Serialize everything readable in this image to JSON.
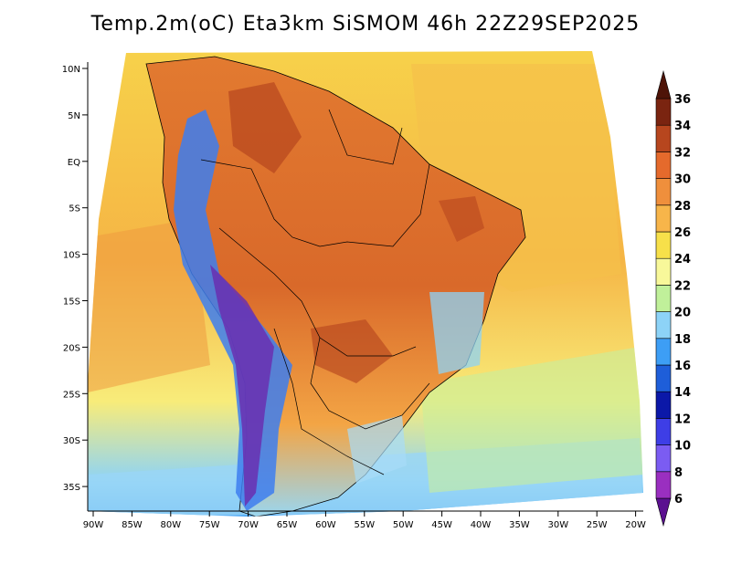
{
  "title": "Temp.2m(oC) Eta3km SiSMOM 46h 22Z29SEP2025",
  "axes": {
    "lat_labels": [
      "10N",
      "5N",
      "EQ",
      "5S",
      "10S",
      "15S",
      "20S",
      "25S",
      "30S",
      "35S"
    ],
    "lon_labels": [
      "90W",
      "85W",
      "80W",
      "75W",
      "70W",
      "65W",
      "60W",
      "55W",
      "50W",
      "45W",
      "40W",
      "35W",
      "30W",
      "25W",
      "20W"
    ]
  },
  "colorbar": {
    "labels": [
      "6",
      "8",
      "10",
      "12",
      "14",
      "16",
      "18",
      "20",
      "22",
      "24",
      "26",
      "28",
      "30",
      "32",
      "34",
      "36"
    ],
    "colors": [
      "#5b1090",
      "#9a2fc0",
      "#7b5cf2",
      "#3e3ee6",
      "#0b18a8",
      "#1e5ed9",
      "#3d9ef5",
      "#8dd3f7",
      "#c0f09a",
      "#f8f89a",
      "#f7e04a",
      "#f7b54a",
      "#ef8f3c",
      "#e56a2c",
      "#b7461e",
      "#7a2410",
      "#4e1408"
    ]
  },
  "map": {
    "region": "South America",
    "variable": "2m temperature",
    "units": "oC"
  }
}
